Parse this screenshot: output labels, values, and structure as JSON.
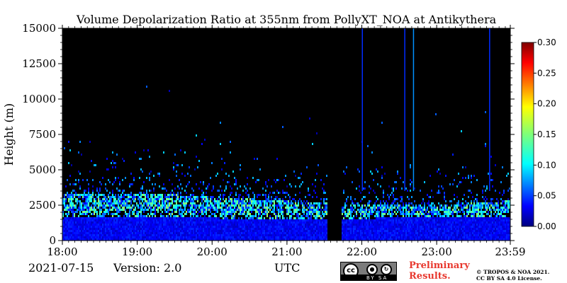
{
  "chart_data": {
    "type": "heatmap",
    "title": "Volume Depolarization Ratio at 355nm from PollyXT_NOA at Antikythera",
    "xlabel": "",
    "ylabel": "Height (m)",
    "x_tick_labels": [
      "18:00",
      "19:00",
      "20:00",
      "21:00",
      "22:00",
      "23:00",
      "23:59"
    ],
    "x_range": [
      "18:00",
      "23:59"
    ],
    "y_ticks": [
      0,
      2500,
      5000,
      7500,
      10000,
      12500,
      15000
    ],
    "ylim": [
      0,
      15000
    ],
    "colorbar": {
      "ticks": [
        "0.00",
        "0.05",
        "0.10",
        "0.15",
        "0.20",
        "0.25",
        "0.30"
      ],
      "range": [
        0.0,
        0.3
      ],
      "colormap": "jet"
    },
    "background_color": "#000000",
    "data_gap": {
      "start": "21:32",
      "end": "21:43"
    },
    "layers": [
      {
        "feature": "near-surface layer",
        "top_height_m": [
          1500,
          1800
        ],
        "depol_ratio": [
          0.02,
          0.05
        ]
      },
      {
        "feature": "aerosol layer",
        "height_range_m": [
          2000,
          3000
        ],
        "depol_ratio": [
          0.08,
          0.15
        ]
      }
    ],
    "vertical_streaks": [
      {
        "time": "22:00",
        "depol_ratio": 0.05
      },
      {
        "time": "22:34",
        "depol_ratio": 0.05
      },
      {
        "time": "22:41",
        "depol_ratio": 0.08
      },
      {
        "time": "23:42",
        "depol_ratio": 0.05
      }
    ]
  },
  "footer": {
    "date": "2021-07-15",
    "version": "Version: 2.0",
    "time_label": "UTC",
    "license_badge_strip": "BY SA",
    "preliminary_line1": "Preliminary",
    "preliminary_line2": "Results.",
    "copyright_line1": "© TROPOS & NOA 2021.",
    "copyright_line2": "CC BY SA 4.0 License."
  }
}
